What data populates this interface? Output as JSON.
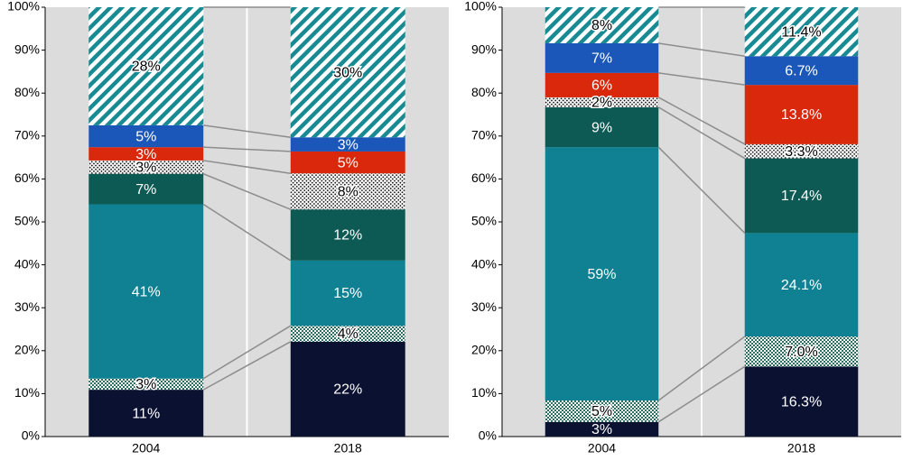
{
  "chart_data": [
    {
      "type": "bar",
      "stacked": true,
      "categories": [
        "2004",
        "2018"
      ],
      "ylim": [
        0,
        100
      ],
      "yticks": [
        {
          "value": 0,
          "label": "0%"
        },
        {
          "value": 10,
          "label": "10%"
        },
        {
          "value": 20,
          "label": "20%"
        },
        {
          "value": 30,
          "label": "30%"
        },
        {
          "value": 40,
          "label": "40%"
        },
        {
          "value": 50,
          "label": "50%"
        },
        {
          "value": 60,
          "label": "60%"
        },
        {
          "value": 70,
          "label": "70%"
        },
        {
          "value": 80,
          "label": "80%"
        },
        {
          "value": 90,
          "label": "90%"
        },
        {
          "value": 100,
          "label": "100%"
        }
      ],
      "series": [
        {
          "color": "#0b1131",
          "values": [
            10.9,
            22.1
          ],
          "value_labels": [
            "11%",
            "22%"
          ]
        },
        {
          "color": "#2b6e63",
          "pattern": "checker",
          "values": [
            2.6,
            3.7
          ],
          "value_labels": [
            "3%",
            "4%"
          ]
        },
        {
          "color": "#0f8193",
          "values": [
            40.6,
            15.2
          ],
          "value_labels": [
            "41%",
            "15%"
          ]
        },
        {
          "color": "#0d5a55",
          "values": [
            7.1,
            11.9
          ],
          "value_labels": [
            "7%",
            "12%"
          ]
        },
        {
          "color": "#111111",
          "pattern": "dots",
          "values": [
            3.1,
            8.4
          ],
          "value_labels": [
            "3%",
            "8%"
          ]
        },
        {
          "color": "#d9280b",
          "values": [
            3.1,
            5.1
          ],
          "value_labels": [
            "3%",
            "5%"
          ]
        },
        {
          "color": "#1a57b9",
          "values": [
            5.1,
            3.3
          ],
          "value_labels": [
            "5%",
            "3%"
          ]
        },
        {
          "color": "#178a93",
          "pattern": "hatch",
          "values": [
            27.5,
            30.3
          ],
          "value_labels": [
            "28%",
            "30%"
          ]
        }
      ]
    },
    {
      "type": "bar",
      "stacked": true,
      "categories": [
        "2004",
        "2018"
      ],
      "ylim": [
        0,
        100
      ],
      "yticks": [
        {
          "value": 0,
          "label": "0%"
        },
        {
          "value": 10,
          "label": "10%"
        },
        {
          "value": 20,
          "label": "20%"
        },
        {
          "value": 30,
          "label": "30%"
        },
        {
          "value": 40,
          "label": "40%"
        },
        {
          "value": 50,
          "label": "50%"
        },
        {
          "value": 60,
          "label": "60%"
        },
        {
          "value": 70,
          "label": "70%"
        },
        {
          "value": 80,
          "label": "80%"
        },
        {
          "value": 90,
          "label": "90%"
        },
        {
          "value": 100,
          "label": "100%"
        }
      ],
      "series": [
        {
          "color": "#0b1131",
          "values": [
            3.4,
            16.3
          ],
          "value_labels": [
            "3%",
            "16.3%"
          ]
        },
        {
          "color": "#2b6e63",
          "pattern": "checker",
          "values": [
            5.0,
            7.0
          ],
          "value_labels": [
            "5%",
            "7.0%"
          ]
        },
        {
          "color": "#0f8193",
          "values": [
            59.0,
            24.1
          ],
          "value_labels": [
            "59%",
            "24.1%"
          ]
        },
        {
          "color": "#0d5a55",
          "values": [
            9.3,
            17.4
          ],
          "value_labels": [
            "9%",
            "17.4%"
          ]
        },
        {
          "color": "#111111",
          "pattern": "dots",
          "values": [
            2.3,
            3.3
          ],
          "value_labels": [
            "2%",
            "3.3%"
          ]
        },
        {
          "color": "#d9280b",
          "values": [
            5.7,
            13.8
          ],
          "value_labels": [
            "6%",
            "13.8%"
          ]
        },
        {
          "color": "#1a57b9",
          "values": [
            6.9,
            6.7
          ],
          "value_labels": [
            "7%",
            "6.7%"
          ]
        },
        {
          "color": "#178a93",
          "pattern": "hatch",
          "values": [
            8.4,
            11.4
          ],
          "value_labels": [
            "8%",
            "11.4%"
          ]
        }
      ]
    }
  ]
}
